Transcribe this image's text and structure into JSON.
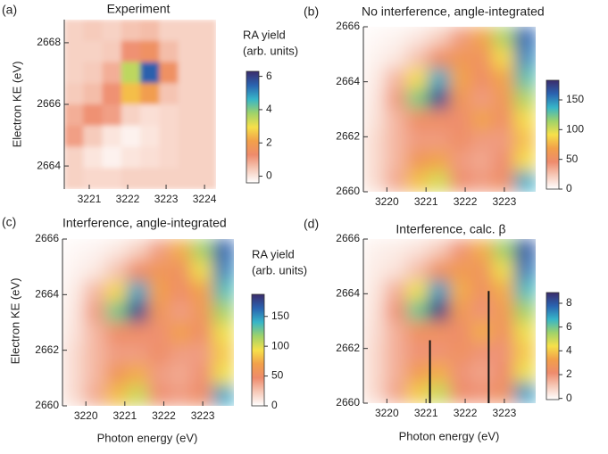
{
  "chart_data": [
    {
      "type": "heatmap",
      "panel_label": "(a)",
      "title": "Experiment",
      "y_label": "Electron KE (eV)",
      "colorbar_label": [
        "RA yield",
        "(arb. units)"
      ],
      "xlim": [
        3220.35,
        3224.3
      ],
      "ylim": [
        2663.25,
        2668.75
      ],
      "xticks": [
        3221,
        3222,
        3223,
        3224
      ],
      "yticks": [
        2664,
        2666,
        2668
      ],
      "zlim": [
        -0.4,
        6.3
      ],
      "zticks": [
        0,
        2,
        4,
        6
      ],
      "colormap": [
        "#ffffff",
        "#f6c9b8",
        "#ee8b6c",
        "#f2a04a",
        "#f6e04a",
        "#9fd26a",
        "#37b5c8",
        "#2a63b0",
        "#3b2c6b"
      ],
      "z": [
        [
          0.3,
          0.4,
          0.3,
          0.5,
          0.6,
          0.3,
          0.3,
          0.3
        ],
        [
          0.3,
          0.3,
          0.4,
          1.2,
          1.5,
          0.6,
          0.3,
          0.3
        ],
        [
          0.3,
          0.4,
          0.8,
          3.5,
          5.5,
          1.5,
          0.3,
          0.3
        ],
        [
          0.4,
          0.6,
          1.2,
          2.5,
          2,
          0.5,
          0.3,
          0.3
        ],
        [
          0.8,
          1.2,
          1,
          0.3,
          0.1,
          0.2,
          0.3,
          0.3
        ],
        [
          1,
          0.4,
          0,
          -0.2,
          0,
          0.2,
          0.3,
          0.3
        ],
        [
          0.3,
          0,
          -0.2,
          0,
          0.1,
          0.2,
          0.3,
          0.3
        ],
        [
          0.3,
          0.2,
          0.2,
          0.3,
          0.3,
          0.3,
          0.3,
          0.3
        ]
      ]
    },
    {
      "type": "heatmap",
      "panel_label": "(b)",
      "title": "No interference, angle-integrated",
      "xlim": [
        3219.4,
        3223.8
      ],
      "ylim": [
        2660,
        2666
      ],
      "xticks": [
        3220,
        3221,
        3222,
        3223
      ],
      "yticks": [
        2660,
        2662,
        2664,
        2666
      ],
      "zlim": [
        0,
        183
      ],
      "zticks": [
        0,
        50,
        100,
        150
      ],
      "colormap": [
        "#ffffff",
        "#f6c9b8",
        "#ee8b6c",
        "#f2a04a",
        "#f6e04a",
        "#9fd26a",
        "#37b5c8",
        "#2a63b0",
        "#3b2c6b"
      ],
      "z": [
        [
          3,
          5,
          10,
          20,
          40,
          70,
          110,
          160
        ],
        [
          5,
          10,
          25,
          50,
          60,
          55,
          90,
          150
        ],
        [
          8,
          30,
          90,
          140,
          70,
          50,
          70,
          130
        ],
        [
          10,
          40,
          120,
          170,
          60,
          40,
          60,
          110
        ],
        [
          12,
          30,
          50,
          50,
          45,
          70,
          50,
          90
        ],
        [
          15,
          30,
          40,
          40,
          50,
          40,
          40,
          80
        ],
        [
          15,
          30,
          60,
          70,
          40,
          35,
          45,
          90
        ],
        [
          15,
          35,
          80,
          100,
          45,
          40,
          50,
          140
        ]
      ]
    },
    {
      "type": "heatmap",
      "panel_label": "(c)",
      "title": "Interference, angle-integrated",
      "x_label": "Photon energy (eV)",
      "y_label": "Electron KE (eV)",
      "colorbar_label": [
        "RA yield",
        "(arb. units)"
      ],
      "xlim": [
        3219.4,
        3223.8
      ],
      "ylim": [
        2660,
        2666
      ],
      "xticks": [
        3220,
        3221,
        3222,
        3223
      ],
      "yticks": [
        2660,
        2662,
        2664,
        2666
      ],
      "zlim": [
        0,
        187
      ],
      "zticks": [
        0,
        50,
        100,
        150
      ],
      "colormap": [
        "#ffffff",
        "#f6c9b8",
        "#ee8b6c",
        "#f2a04a",
        "#f6e04a",
        "#9fd26a",
        "#37b5c8",
        "#2a63b0",
        "#3b2c6b"
      ],
      "z": [
        [
          3,
          5,
          10,
          20,
          40,
          75,
          115,
          165
        ],
        [
          5,
          10,
          25,
          50,
          60,
          55,
          95,
          155
        ],
        [
          8,
          30,
          90,
          145,
          70,
          50,
          70,
          135
        ],
        [
          10,
          40,
          125,
          175,
          60,
          40,
          60,
          115
        ],
        [
          12,
          30,
          50,
          50,
          45,
          70,
          50,
          95
        ],
        [
          15,
          30,
          40,
          40,
          50,
          40,
          40,
          85
        ],
        [
          15,
          30,
          60,
          75,
          40,
          35,
          45,
          95
        ],
        [
          15,
          35,
          80,
          105,
          45,
          40,
          50,
          145
        ]
      ]
    },
    {
      "type": "heatmap",
      "panel_label": "(d)",
      "title": "Interference, calc. β",
      "x_label": "Photon energy (eV)",
      "xlim": [
        3219.4,
        3223.8
      ],
      "ylim": [
        2660,
        2666
      ],
      "xticks": [
        3220,
        3221,
        3222,
        3223
      ],
      "yticks": [
        2660,
        2662,
        2664,
        2666
      ],
      "zlim": [
        -0.1,
        8.9
      ],
      "zticks": [
        0,
        2,
        4,
        6,
        8
      ],
      "colormap": [
        "#ffffff",
        "#f6c9b8",
        "#ee8b6c",
        "#f2a04a",
        "#f6e04a",
        "#9fd26a",
        "#37b5c8",
        "#2a63b0",
        "#3b2c6b"
      ],
      "z": [
        [
          0.2,
          0.3,
          0.5,
          1,
          2,
          3.5,
          5.5,
          8
        ],
        [
          0.3,
          0.5,
          1.2,
          2.5,
          3,
          2.7,
          4.5,
          7.5
        ],
        [
          0.4,
          1.5,
          4.5,
          7,
          3.5,
          2.5,
          3.5,
          6.5
        ],
        [
          0.5,
          2,
          6,
          8.5,
          3,
          2,
          3,
          5.5
        ],
        [
          0.6,
          1.5,
          2.5,
          2.5,
          2.2,
          3.5,
          2.5,
          4.5
        ],
        [
          0.7,
          1.5,
          2,
          2,
          2.5,
          2,
          2,
          4
        ],
        [
          0.7,
          1.5,
          3,
          3.5,
          2,
          1.7,
          2.2,
          4.5
        ],
        [
          0.7,
          1.7,
          4,
          5,
          2.2,
          2,
          2.5,
          7
        ]
      ],
      "vertical_lines": [
        {
          "x": 3221.1,
          "y": [
            2660,
            2662.3
          ]
        },
        {
          "x": 3222.6,
          "y": [
            2660,
            2664.1
          ]
        }
      ]
    }
  ]
}
